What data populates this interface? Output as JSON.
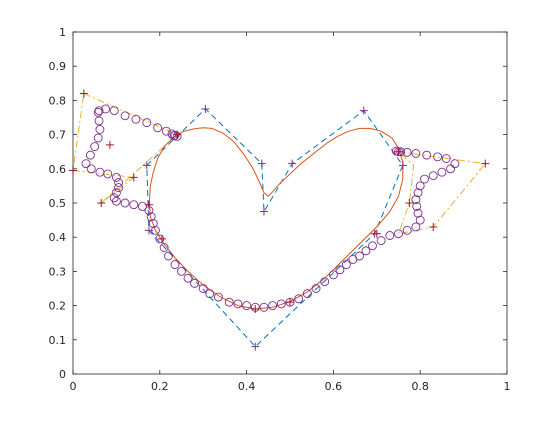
{
  "chart_data": {
    "type": "line",
    "title": "",
    "xlabel": "",
    "ylabel": "",
    "xlim": [
      0,
      1
    ],
    "ylim": [
      0,
      1
    ],
    "grid": false,
    "legend": "none",
    "x_ticks": [
      "0",
      "0.2",
      "0.4",
      "0.6",
      "0.8",
      "1"
    ],
    "y_ticks": [
      "0",
      "0.1",
      "0.2",
      "0.3",
      "0.4",
      "0.5",
      "0.6",
      "0.7",
      "0.8",
      "0.9",
      "1"
    ],
    "series": [
      {
        "style": "dash-dot line (yellow)",
        "color": "#EDB120",
        "points": [
          [
            0.025,
            0.82
          ],
          [
            0.24,
            0.7
          ],
          [
            0.065,
            0.5
          ],
          [
            0.14,
            0.575
          ],
          [
            0.0,
            0.595
          ],
          [
            0.025,
            0.82
          ]
        ]
      },
      {
        "style": "dash-dot line (yellow)",
        "color": "#EDB120",
        "points": [
          [
            0.75,
            0.65
          ],
          [
            0.95,
            0.615
          ],
          [
            0.83,
            0.43
          ],
          [
            0.75,
            0.41
          ],
          [
            0.775,
            0.5
          ],
          [
            0.785,
            0.61
          ],
          [
            0.75,
            0.65
          ]
        ]
      },
      {
        "style": "dashed line (blue)",
        "color": "#0072BD",
        "points": [
          [
            0.17,
            0.61
          ],
          [
            0.305,
            0.775
          ],
          [
            0.435,
            0.615
          ],
          [
            0.44,
            0.475
          ],
          [
            0.505,
            0.615
          ],
          [
            0.67,
            0.77
          ],
          [
            0.76,
            0.61
          ],
          [
            0.695,
            0.41
          ],
          [
            0.42,
            0.08
          ],
          [
            0.175,
            0.42
          ],
          [
            0.17,
            0.61
          ]
        ]
      },
      {
        "style": "solid curve (orange) - heart",
        "color": "#D95319",
        "points": [
          [
            0.44,
            0.53
          ],
          [
            0.43,
            0.56
          ],
          [
            0.415,
            0.6
          ],
          [
            0.395,
            0.64
          ],
          [
            0.37,
            0.68
          ],
          [
            0.345,
            0.705
          ],
          [
            0.32,
            0.718
          ],
          [
            0.3,
            0.72
          ],
          [
            0.28,
            0.717
          ],
          [
            0.255,
            0.71
          ],
          [
            0.23,
            0.69
          ],
          [
            0.21,
            0.665
          ],
          [
            0.195,
            0.63
          ],
          [
            0.185,
            0.59
          ],
          [
            0.178,
            0.55
          ],
          [
            0.176,
            0.5
          ],
          [
            0.178,
            0.46
          ],
          [
            0.19,
            0.42
          ],
          [
            0.21,
            0.38
          ],
          [
            0.235,
            0.34
          ],
          [
            0.265,
            0.3
          ],
          [
            0.3,
            0.26
          ],
          [
            0.34,
            0.225
          ],
          [
            0.38,
            0.2
          ],
          [
            0.42,
            0.19
          ],
          [
            0.46,
            0.195
          ],
          [
            0.5,
            0.212
          ],
          [
            0.54,
            0.24
          ],
          [
            0.58,
            0.28
          ],
          [
            0.62,
            0.33
          ],
          [
            0.66,
            0.38
          ],
          [
            0.7,
            0.43
          ],
          [
            0.73,
            0.475
          ],
          [
            0.75,
            0.52
          ],
          [
            0.76,
            0.57
          ],
          [
            0.76,
            0.62
          ],
          [
            0.75,
            0.66
          ],
          [
            0.735,
            0.69
          ],
          [
            0.71,
            0.71
          ],
          [
            0.685,
            0.718
          ],
          [
            0.66,
            0.718
          ],
          [
            0.635,
            0.71
          ],
          [
            0.61,
            0.695
          ],
          [
            0.585,
            0.675
          ],
          [
            0.555,
            0.645
          ],
          [
            0.525,
            0.615
          ],
          [
            0.5,
            0.585
          ],
          [
            0.475,
            0.555
          ],
          [
            0.458,
            0.53
          ],
          [
            0.45,
            0.52
          ],
          [
            0.44,
            0.53
          ]
        ]
      },
      {
        "style": "circle markers (purple)",
        "color": "#7E2F8E",
        "marker": "o",
        "points": [
          [
            0.06,
            0.77
          ],
          [
            0.075,
            0.775
          ],
          [
            0.095,
            0.77
          ],
          [
            0.12,
            0.755
          ],
          [
            0.145,
            0.745
          ],
          [
            0.17,
            0.735
          ],
          [
            0.195,
            0.72
          ],
          [
            0.215,
            0.71
          ],
          [
            0.228,
            0.702
          ],
          [
            0.235,
            0.698
          ],
          [
            0.24,
            0.695
          ],
          [
            0.233,
            0.696
          ],
          [
            0.058,
            0.765
          ],
          [
            0.06,
            0.74
          ],
          [
            0.062,
            0.715
          ],
          [
            0.058,
            0.69
          ],
          [
            0.05,
            0.665
          ],
          [
            0.04,
            0.64
          ],
          [
            0.03,
            0.615
          ],
          [
            0.042,
            0.6
          ],
          [
            0.062,
            0.59
          ],
          [
            0.08,
            0.585
          ],
          [
            0.1,
            0.575
          ],
          [
            0.105,
            0.56
          ],
          [
            0.105,
            0.545
          ],
          [
            0.1,
            0.53
          ],
          [
            0.095,
            0.515
          ],
          [
            0.1,
            0.505
          ],
          [
            0.12,
            0.5
          ],
          [
            0.14,
            0.495
          ],
          [
            0.16,
            0.49
          ],
          [
            0.175,
            0.478
          ],
          [
            0.18,
            0.46
          ],
          [
            0.185,
            0.44
          ],
          [
            0.19,
            0.42
          ],
          [
            0.2,
            0.395
          ],
          [
            0.21,
            0.37
          ],
          [
            0.22,
            0.345
          ],
          [
            0.235,
            0.32
          ],
          [
            0.25,
            0.3
          ],
          [
            0.265,
            0.28
          ],
          [
            0.28,
            0.265
          ],
          [
            0.3,
            0.25
          ],
          [
            0.315,
            0.235
          ],
          [
            0.335,
            0.225
          ],
          [
            0.36,
            0.21
          ],
          [
            0.38,
            0.205
          ],
          [
            0.4,
            0.2
          ],
          [
            0.42,
            0.195
          ],
          [
            0.44,
            0.195
          ],
          [
            0.46,
            0.2
          ],
          [
            0.48,
            0.205
          ],
          [
            0.5,
            0.21
          ],
          [
            0.52,
            0.22
          ],
          [
            0.54,
            0.235
          ],
          [
            0.56,
            0.25
          ],
          [
            0.58,
            0.27
          ],
          [
            0.6,
            0.29
          ],
          [
            0.615,
            0.305
          ],
          [
            0.63,
            0.32
          ],
          [
            0.645,
            0.335
          ],
          [
            0.66,
            0.345
          ],
          [
            0.675,
            0.36
          ],
          [
            0.69,
            0.375
          ],
          [
            0.71,
            0.39
          ],
          [
            0.73,
            0.405
          ],
          [
            0.75,
            0.41
          ],
          [
            0.77,
            0.42
          ],
          [
            0.79,
            0.43
          ],
          [
            0.8,
            0.45
          ],
          [
            0.795,
            0.47
          ],
          [
            0.792,
            0.49
          ],
          [
            0.79,
            0.51
          ],
          [
            0.795,
            0.53
          ],
          [
            0.8,
            0.55
          ],
          [
            0.81,
            0.57
          ],
          [
            0.83,
            0.58
          ],
          [
            0.85,
            0.59
          ],
          [
            0.87,
            0.6
          ],
          [
            0.88,
            0.615
          ],
          [
            0.86,
            0.63
          ],
          [
            0.84,
            0.635
          ],
          [
            0.815,
            0.64
          ],
          [
            0.79,
            0.645
          ],
          [
            0.77,
            0.648
          ],
          [
            0.755,
            0.65
          ],
          [
            0.745,
            0.652
          ],
          [
            0.75,
            0.65
          ]
        ]
      },
      {
        "style": "plus markers (purple)",
        "color": "#7E2F8E",
        "marker": "+",
        "points": [
          [
            0.17,
            0.61
          ],
          [
            0.305,
            0.775
          ],
          [
            0.435,
            0.615
          ],
          [
            0.44,
            0.475
          ],
          [
            0.505,
            0.615
          ],
          [
            0.67,
            0.77
          ],
          [
            0.76,
            0.61
          ],
          [
            0.695,
            0.41
          ],
          [
            0.42,
            0.08
          ],
          [
            0.175,
            0.42
          ]
        ]
      },
      {
        "style": "plus markers (red)",
        "color": "#A2142F",
        "marker": "+",
        "points": [
          [
            0.025,
            0.82
          ],
          [
            0.24,
            0.7
          ],
          [
            0.065,
            0.5
          ],
          [
            0.14,
            0.575
          ],
          [
            0.0,
            0.595
          ],
          [
            0.085,
            0.67
          ],
          [
            0.175,
            0.495
          ],
          [
            0.205,
            0.395
          ],
          [
            0.75,
            0.65
          ],
          [
            0.95,
            0.615
          ],
          [
            0.83,
            0.43
          ],
          [
            0.775,
            0.5
          ],
          [
            0.7,
            0.41
          ],
          [
            0.42,
            0.19
          ],
          [
            0.5,
            0.21
          ]
        ]
      }
    ]
  }
}
